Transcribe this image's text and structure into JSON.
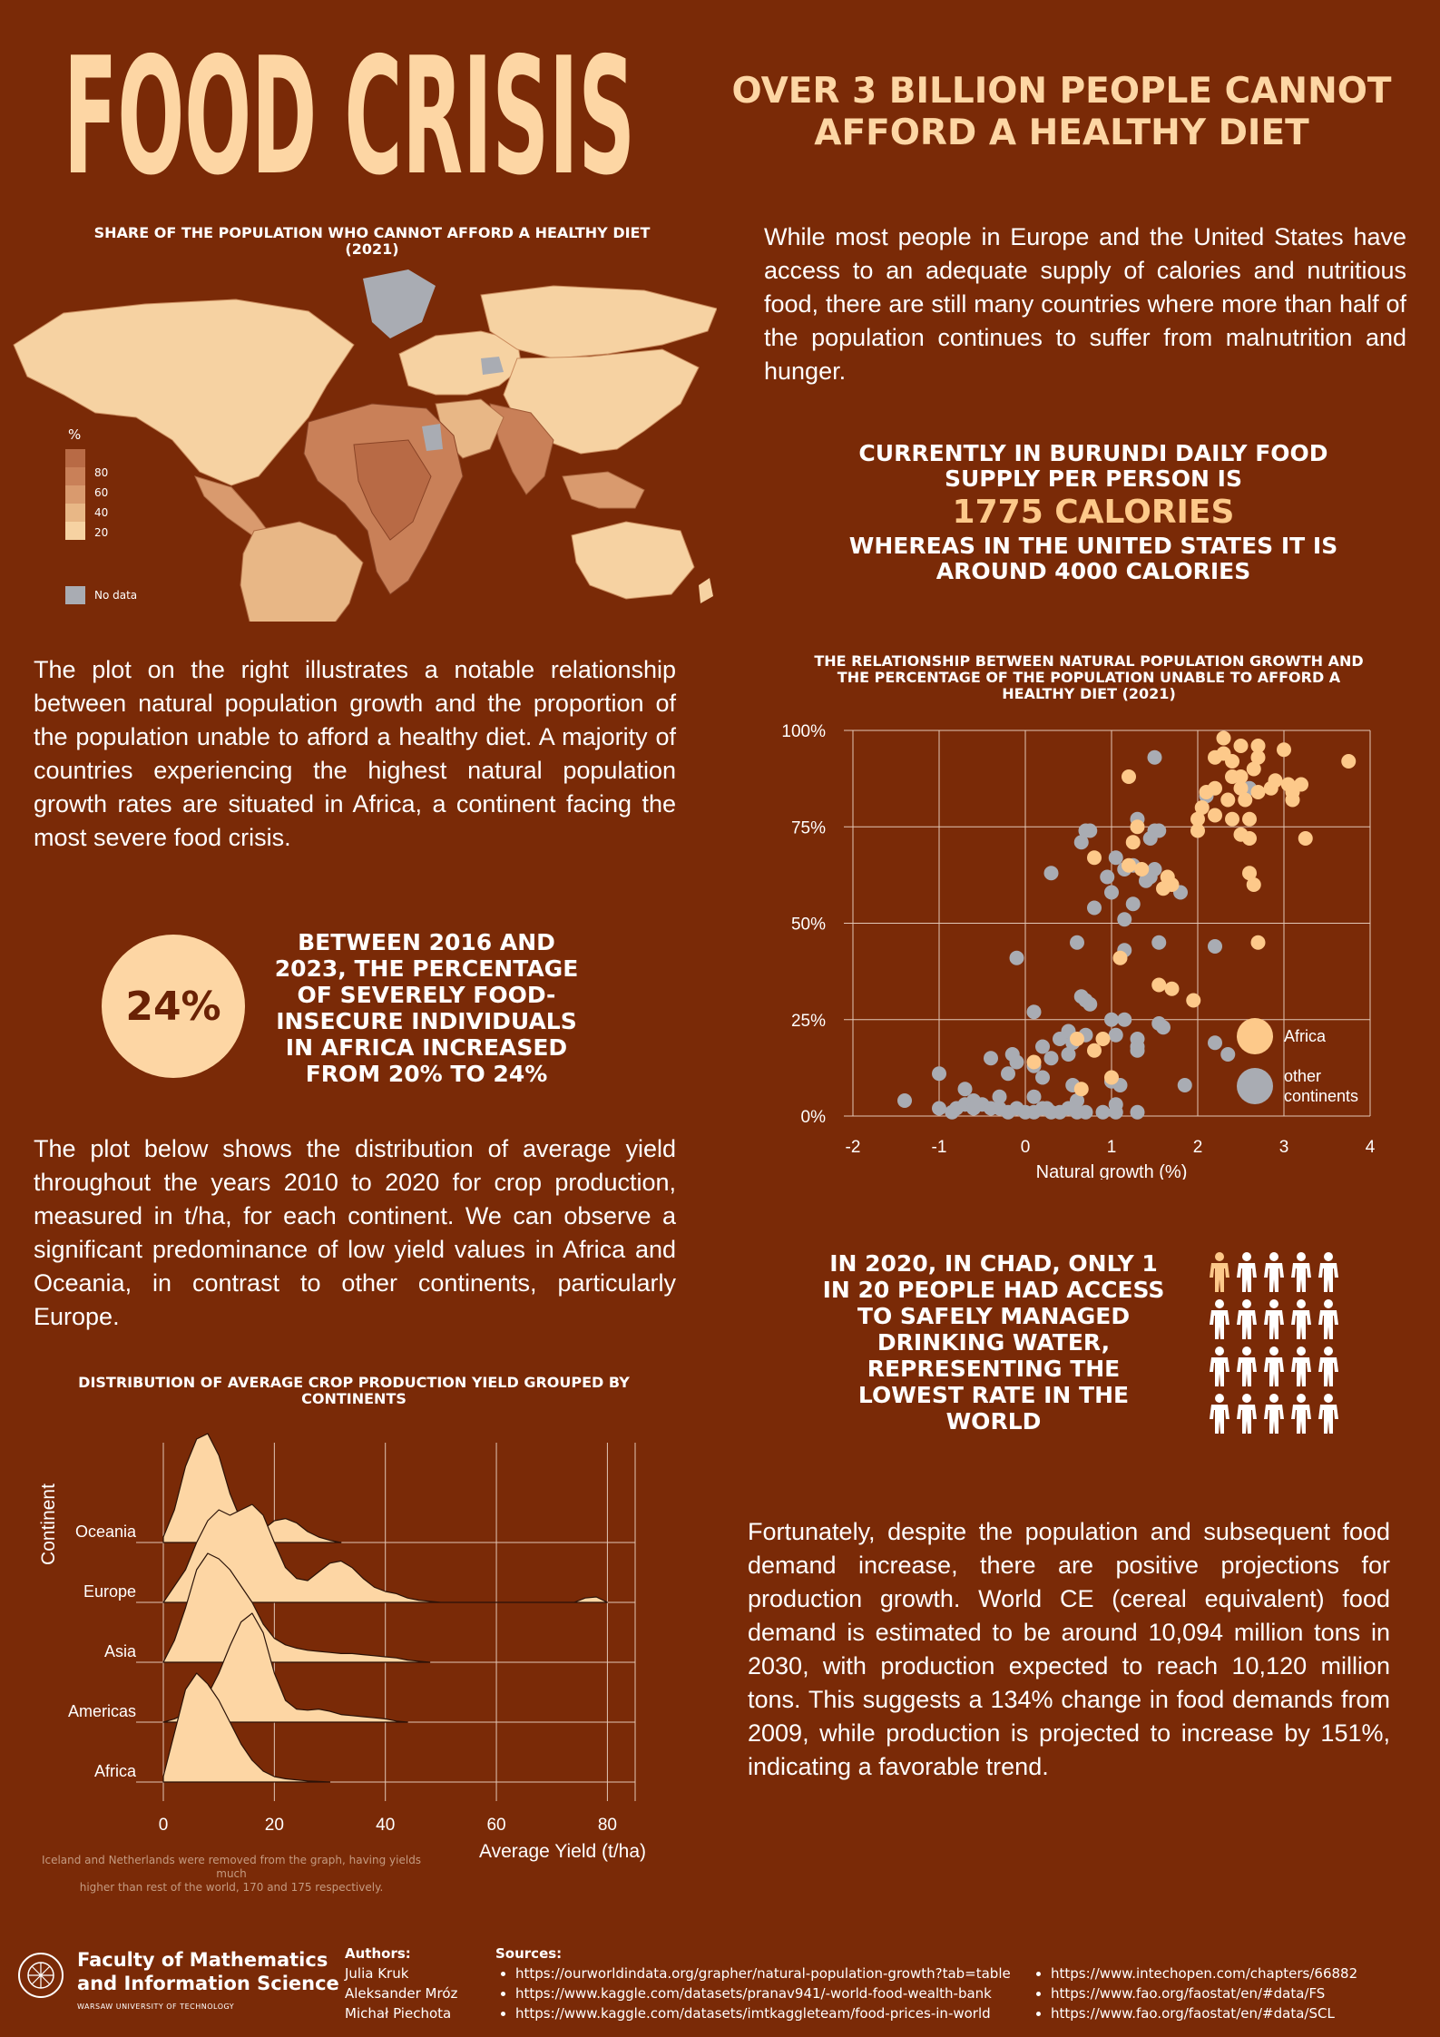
{
  "title": "FOOD CRISIS",
  "headline": [
    "OVER 3 BILLION PEOPLE CANNOT",
    "AFFORD A HEALTHY DIET"
  ],
  "map": {
    "title": [
      "SHARE OF THE POPULATION WHO  CANNOT AFFORD A  HEALTHY DIET",
      "(2021)"
    ],
    "legend_unit": "%",
    "legend_ticks": [
      "80",
      "60",
      "40",
      "20"
    ],
    "legend_colors": [
      "#b86a45",
      "#c98058",
      "#d99a6e",
      "#e8b786",
      "#f6d2a2"
    ],
    "nodata_label": "No data",
    "nodata_color": "#a9acb3"
  },
  "intro_paragraph": "While most people in Europe and the United States have access to an adequate supply of calories and nutritious food, there are still many countries where more than half of the population continues to suffer from malnutrition and hunger.",
  "calories_stat": {
    "line1": "CURRENTLY IN BURUNDI DAILY FOOD",
    "line2": "SUPPLY PER PERSON IS",
    "highlight": "1775 CALORIES",
    "line3": "WHEREAS IN THE UNITED STATES IT IS",
    "line4": "AROUND 4000 CALORIES"
  },
  "scatter_paragraph": "The plot on the right illustrates a notable relationship between natural population growth and the proportion of the population unable to afford a healthy diet. A majority of countries experiencing the highest natural population growth rates are situated in Africa, a continent facing the most severe food crisis.",
  "food_insecure_stat": {
    "value": "24%",
    "text": [
      "BETWEEN 2016 AND",
      "2023, THE PERCENTAGE",
      "OF SEVERELY FOOD-",
      "INSECURE INDIVIDUALS",
      "IN AFRICA INCREASED",
      "FROM 20% TO 24%"
    ]
  },
  "yield_paragraph": "The plot below shows the distribution of average yield throughout the years 2010 to 2020 for crop production, measured in t/ha, for each continent. We can observe a significant predominance of low yield values in Africa and Oceania, in contrast to other continents, particularly Europe.",
  "chad_stat": [
    "IN 2020, IN CHAD, ONLY 1",
    "IN 20 PEOPLE HAD ACCESS",
    "TO SAFELY MANAGED",
    "DRINKING WATER,",
    "REPRESENTING THE",
    "LOWEST RATE IN THE",
    "WORLD"
  ],
  "chad_icons": {
    "total": 20,
    "highlighted": 1,
    "highlight_color": "#fdc98a",
    "base_color": "#ffffff"
  },
  "projection_paragraph": "Fortunately, despite the population and subsequent food demand increase, there are positive projections for production growth. World CE (cereal equivalent) food demand is estimated to be around 10,094 million tons in 2030, with production expected to reach 10,120 million tons. This suggests a 134% change in food demands from 2009, while production is projected to increase by 151%, indicating a favorable trend.",
  "chart_data": [
    {
      "type": "scatter",
      "title": "THE RELATIONSHIP BETWEEN NATURAL POPULATION GROWTH AND THE PERCENTAGE OF THE POPULATION UNABLE TO AFFORD A HEALTHY DIET (2021)",
      "xlabel": "Natural growth (%)",
      "ylabel": "",
      "xlim": [
        -2,
        4
      ],
      "ylim": [
        0,
        100
      ],
      "x_ticks": [
        "-2",
        "-1",
        "0",
        "1",
        "2",
        "3",
        "4"
      ],
      "y_ticks": [
        "0%",
        "25%",
        "50%",
        "75%",
        "100%"
      ],
      "grid": true,
      "legend_position": "bottom-right",
      "series": [
        {
          "name": "Africa",
          "color": "#fdc98a",
          "points": [
            [
              3.75,
              92
            ],
            [
              2.3,
              98
            ],
            [
              2.5,
              96
            ],
            [
              2.7,
              96
            ],
            [
              2.3,
              94
            ],
            [
              2.2,
              93
            ],
            [
              2.4,
              92
            ],
            [
              2.7,
              93
            ],
            [
              2.65,
              90
            ],
            [
              2.5,
              88
            ],
            [
              3.0,
              95
            ],
            [
              2.4,
              88
            ],
            [
              2.9,
              87
            ],
            [
              3.05,
              86
            ],
            [
              3.2,
              86
            ],
            [
              3.1,
              84
            ],
            [
              2.5,
              85
            ],
            [
              2.7,
              84
            ],
            [
              2.85,
              85
            ],
            [
              2.2,
              85
            ],
            [
              2.35,
              82
            ],
            [
              2.1,
              84
            ],
            [
              2.55,
              82
            ],
            [
              3.1,
              82
            ],
            [
              2.2,
              78
            ],
            [
              2.05,
              80
            ],
            [
              2.4,
              77
            ],
            [
              2.6,
              77
            ],
            [
              2.0,
              77
            ],
            [
              1.2,
              88
            ],
            [
              3.25,
              72
            ],
            [
              2.5,
              73
            ],
            [
              2.6,
              72
            ],
            [
              2.0,
              74
            ],
            [
              1.3,
              75
            ],
            [
              1.25,
              71
            ],
            [
              0.8,
              67
            ],
            [
              1.2,
              65
            ],
            [
              1.35,
              64
            ],
            [
              2.6,
              63
            ],
            [
              1.65,
              62
            ],
            [
              1.7,
              60
            ],
            [
              1.6,
              59
            ],
            [
              2.65,
              60
            ],
            [
              1.1,
              41
            ],
            [
              1.95,
              30
            ],
            [
              2.7,
              45
            ],
            [
              1.7,
              33
            ],
            [
              1.55,
              34
            ],
            [
              0.8,
              17
            ],
            [
              0.9,
              20
            ],
            [
              0.6,
              20
            ],
            [
              0.1,
              14
            ],
            [
              0.65,
              7
            ],
            [
              1.0,
              10
            ]
          ]
        },
        {
          "name": "other continents",
          "color": "#a9acb3",
          "points": [
            [
              1.5,
              93
            ],
            [
              2.1,
              83
            ],
            [
              2.6,
              85
            ],
            [
              0.7,
              74
            ],
            [
              0.75,
              74
            ],
            [
              0.65,
              71
            ],
            [
              1.3,
              77
            ],
            [
              1.5,
              74
            ],
            [
              1.55,
              74
            ],
            [
              1.45,
              72
            ],
            [
              0.3,
              63
            ],
            [
              1.05,
              67
            ],
            [
              1.25,
              65
            ],
            [
              1.15,
              64
            ],
            [
              1.4,
              61
            ],
            [
              1.5,
              64
            ],
            [
              1.45,
              62
            ],
            [
              1.8,
              58
            ],
            [
              1.0,
              58
            ],
            [
              0.95,
              62
            ],
            [
              0.8,
              54
            ],
            [
              1.25,
              55
            ],
            [
              0.6,
              45
            ],
            [
              1.15,
              51
            ],
            [
              1.55,
              45
            ],
            [
              2.2,
              44
            ],
            [
              -0.1,
              41
            ],
            [
              1.15,
              43
            ],
            [
              0.7,
              30
            ],
            [
              0.65,
              31
            ],
            [
              0.1,
              27
            ],
            [
              0.75,
              29
            ],
            [
              1.0,
              25
            ],
            [
              1.15,
              25
            ],
            [
              1.6,
              23
            ],
            [
              1.55,
              24
            ],
            [
              0.5,
              22
            ],
            [
              0.55,
              19
            ],
            [
              0.4,
              20
            ],
            [
              0.2,
              18
            ],
            [
              0.7,
              21
            ],
            [
              1.05,
              21
            ],
            [
              1.3,
              20
            ],
            [
              1.3,
              18
            ],
            [
              1.3,
              17
            ],
            [
              2.2,
              19
            ],
            [
              2.35,
              16
            ],
            [
              0.3,
              15
            ],
            [
              0.5,
              16
            ],
            [
              -0.1,
              14
            ],
            [
              -0.4,
              15
            ],
            [
              -0.15,
              16
            ],
            [
              0.1,
              13
            ],
            [
              0.2,
              10
            ],
            [
              -0.2,
              11
            ],
            [
              -0.7,
              7
            ],
            [
              0.55,
              8
            ],
            [
              1.0,
              9
            ],
            [
              1.1,
              8
            ],
            [
              -1.0,
              11
            ],
            [
              1.85,
              8
            ],
            [
              0.1,
              5
            ],
            [
              -0.3,
              5
            ],
            [
              -0.6,
              4
            ],
            [
              0.6,
              4
            ],
            [
              -1.4,
              4
            ],
            [
              1.05,
              3
            ],
            [
              -0.8,
              2
            ],
            [
              -0.7,
              3
            ],
            [
              -0.6,
              2
            ],
            [
              -0.5,
              3
            ],
            [
              -0.4,
              2
            ],
            [
              -0.3,
              2
            ],
            [
              -0.2,
              1
            ],
            [
              -0.1,
              2
            ],
            [
              0,
              1
            ],
            [
              0.1,
              1
            ],
            [
              0.2,
              2
            ],
            [
              0.3,
              1
            ],
            [
              0.4,
              1
            ],
            [
              0.5,
              2
            ],
            [
              0.7,
              1
            ],
            [
              0.9,
              1
            ],
            [
              1.05,
              1
            ],
            [
              1.3,
              1
            ],
            [
              -1.0,
              2
            ],
            [
              -0.85,
              1
            ],
            [
              0.25,
              2
            ],
            [
              0.6,
              1
            ]
          ]
        }
      ]
    },
    {
      "type": "area",
      "subtype": "ridgeline",
      "title": "DISTRIBUTION OF AVERAGE CROP PRODUCTION YIELD GROUPED BY CONTINENTS",
      "xlabel": "Average Yield (t/ha)",
      "ylabel": "Continent",
      "xlim": [
        0,
        85
      ],
      "x_ticks": [
        "0",
        "20",
        "40",
        "60",
        "80"
      ],
      "categories": [
        "Oceania",
        "Europe",
        "Asia",
        "Americas",
        "Africa"
      ],
      "fill_color": "#fdd6a4",
      "grid": true,
      "series": [
        {
          "name": "Oceania",
          "x": [
            0,
            2,
            4,
            6,
            8,
            10,
            12,
            14,
            16,
            18,
            20,
            22,
            24,
            26,
            28,
            30,
            32
          ],
          "values": [
            0.05,
            0.3,
            0.7,
            0.95,
            1.0,
            0.8,
            0.45,
            0.2,
            0.12,
            0.12,
            0.2,
            0.22,
            0.18,
            0.1,
            0.05,
            0.02,
            0
          ]
        },
        {
          "name": "Europe",
          "x": [
            0,
            4,
            6,
            8,
            10,
            12,
            14,
            16,
            18,
            20,
            22,
            24,
            26,
            28,
            30,
            32,
            34,
            36,
            38,
            40,
            42,
            44,
            46,
            48,
            50,
            74,
            76,
            78,
            80
          ],
          "values": [
            0,
            0.3,
            0.55,
            0.75,
            0.85,
            0.8,
            0.85,
            0.9,
            0.8,
            0.55,
            0.32,
            0.22,
            0.2,
            0.28,
            0.36,
            0.38,
            0.32,
            0.22,
            0.14,
            0.1,
            0.08,
            0.04,
            0.02,
            0.01,
            0,
            0,
            0.04,
            0.05,
            0
          ]
        },
        {
          "name": "Asia",
          "x": [
            0,
            2,
            4,
            6,
            8,
            10,
            12,
            14,
            16,
            18,
            20,
            22,
            24,
            26,
            28,
            30,
            32,
            34,
            36,
            38,
            40,
            42,
            44,
            46,
            48
          ],
          "values": [
            0,
            0.2,
            0.5,
            0.85,
            1.0,
            0.95,
            0.85,
            0.7,
            0.55,
            0.35,
            0.22,
            0.16,
            0.13,
            0.11,
            0.1,
            0.09,
            0.08,
            0.08,
            0.07,
            0.06,
            0.05,
            0.04,
            0.02,
            0.01,
            0
          ]
        },
        {
          "name": "Americas",
          "x": [
            0,
            2,
            4,
            6,
            8,
            10,
            12,
            14,
            16,
            18,
            20,
            22,
            24,
            26,
            28,
            30,
            32,
            34,
            36,
            38,
            40,
            42,
            44
          ],
          "values": [
            0,
            0.03,
            0.08,
            0.14,
            0.25,
            0.45,
            0.7,
            0.92,
            1.0,
            0.82,
            0.45,
            0.2,
            0.12,
            0.11,
            0.12,
            0.1,
            0.07,
            0.06,
            0.05,
            0.04,
            0.03,
            0.01,
            0
          ]
        },
        {
          "name": "Africa",
          "x": [
            0,
            2,
            4,
            6,
            8,
            10,
            12,
            14,
            16,
            18,
            20,
            22,
            24,
            26,
            28,
            30
          ],
          "values": [
            0.05,
            0.45,
            0.85,
            1.0,
            0.9,
            0.75,
            0.55,
            0.35,
            0.2,
            0.1,
            0.05,
            0.03,
            0.02,
            0.01,
            0.005,
            0
          ]
        }
      ]
    }
  ],
  "ridgeline_note": [
    "Iceland and Netherlands were removed from the graph, having yields much",
    "higher than rest of the world, 170 and 175 respectively."
  ],
  "footer": {
    "faculty_line1": "Faculty of Mathematics",
    "faculty_line2": "and Information Science",
    "university": "WARSAW UNIVERSITY OF TECHNOLOGY",
    "authors_label": "Authors:",
    "authors": [
      "Julia Kruk",
      "Aleksander Mróz",
      "Michał Piechota"
    ],
    "sources_label": "Sources:",
    "sources_left": [
      "https://ourworldindata.org/grapher/natural-population-growth?tab=table",
      "https://www.kaggle.com/datasets/pranav941/-world-food-wealth-bank",
      "https://www.kaggle.com/datasets/imtkaggleteam/food-prices-in-world"
    ],
    "sources_right": [
      "https://www.intechopen.com/chapters/66882",
      "https://www.fao.org/faostat/en/#data/FS",
      "https://www.fao.org/faostat/en/#data/SCL"
    ]
  }
}
